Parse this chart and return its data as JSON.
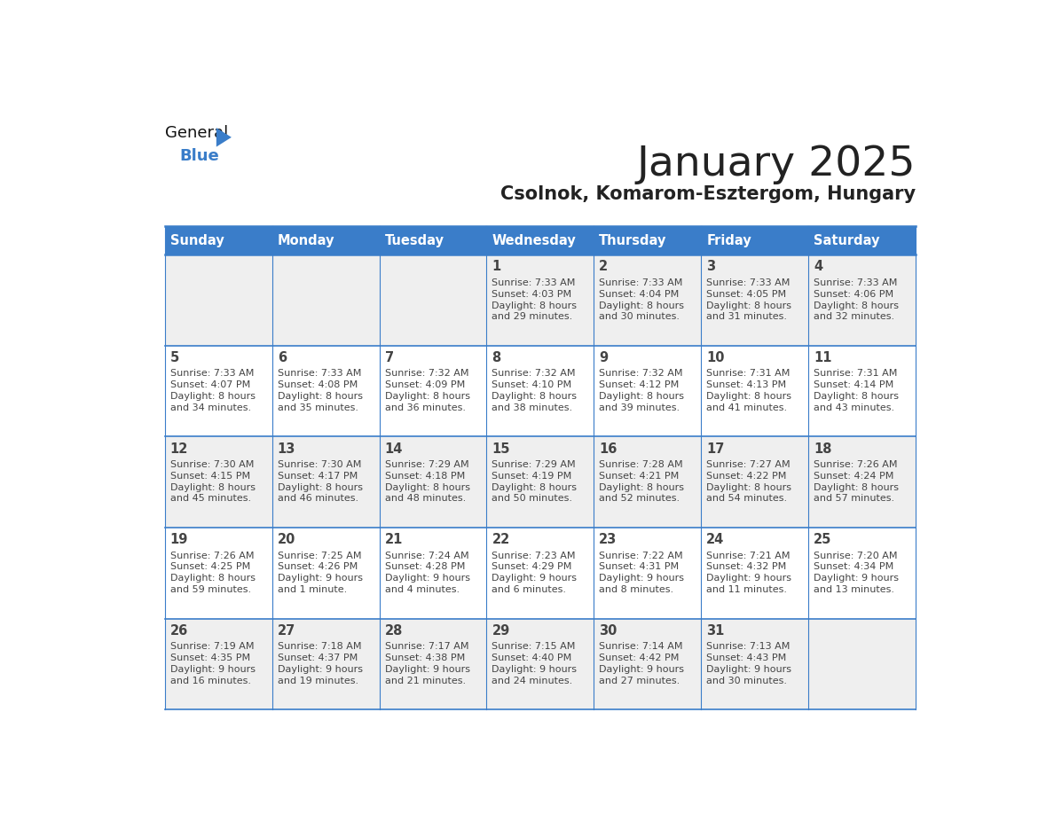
{
  "title": "January 2025",
  "subtitle": "Csolnok, Komarom-Esztergom, Hungary",
  "days_of_week": [
    "Sunday",
    "Monday",
    "Tuesday",
    "Wednesday",
    "Thursday",
    "Friday",
    "Saturday"
  ],
  "header_bg": "#3A7DC9",
  "header_text": "#FFFFFF",
  "row_bg_odd": "#EFEFEF",
  "row_bg_even": "#FFFFFF",
  "line_color": "#3A7DC9",
  "text_color": "#444444",
  "title_color": "#222222",
  "subtitle_color": "#222222",
  "logo_general_color": "#111111",
  "logo_blue_color": "#3A7DC9",
  "logo_triangle_color": "#3A7DC9",
  "calendar": [
    [
      {
        "day": null,
        "sunrise": null,
        "sunset": null,
        "daylight": null
      },
      {
        "day": null,
        "sunrise": null,
        "sunset": null,
        "daylight": null
      },
      {
        "day": null,
        "sunrise": null,
        "sunset": null,
        "daylight": null
      },
      {
        "day": 1,
        "sunrise": "7:33 AM",
        "sunset": "4:03 PM",
        "daylight": "8 hours\nand 29 minutes."
      },
      {
        "day": 2,
        "sunrise": "7:33 AM",
        "sunset": "4:04 PM",
        "daylight": "8 hours\nand 30 minutes."
      },
      {
        "day": 3,
        "sunrise": "7:33 AM",
        "sunset": "4:05 PM",
        "daylight": "8 hours\nand 31 minutes."
      },
      {
        "day": 4,
        "sunrise": "7:33 AM",
        "sunset": "4:06 PM",
        "daylight": "8 hours\nand 32 minutes."
      }
    ],
    [
      {
        "day": 5,
        "sunrise": "7:33 AM",
        "sunset": "4:07 PM",
        "daylight": "8 hours\nand 34 minutes."
      },
      {
        "day": 6,
        "sunrise": "7:33 AM",
        "sunset": "4:08 PM",
        "daylight": "8 hours\nand 35 minutes."
      },
      {
        "day": 7,
        "sunrise": "7:32 AM",
        "sunset": "4:09 PM",
        "daylight": "8 hours\nand 36 minutes."
      },
      {
        "day": 8,
        "sunrise": "7:32 AM",
        "sunset": "4:10 PM",
        "daylight": "8 hours\nand 38 minutes."
      },
      {
        "day": 9,
        "sunrise": "7:32 AM",
        "sunset": "4:12 PM",
        "daylight": "8 hours\nand 39 minutes."
      },
      {
        "day": 10,
        "sunrise": "7:31 AM",
        "sunset": "4:13 PM",
        "daylight": "8 hours\nand 41 minutes."
      },
      {
        "day": 11,
        "sunrise": "7:31 AM",
        "sunset": "4:14 PM",
        "daylight": "8 hours\nand 43 minutes."
      }
    ],
    [
      {
        "day": 12,
        "sunrise": "7:30 AM",
        "sunset": "4:15 PM",
        "daylight": "8 hours\nand 45 minutes."
      },
      {
        "day": 13,
        "sunrise": "7:30 AM",
        "sunset": "4:17 PM",
        "daylight": "8 hours\nand 46 minutes."
      },
      {
        "day": 14,
        "sunrise": "7:29 AM",
        "sunset": "4:18 PM",
        "daylight": "8 hours\nand 48 minutes."
      },
      {
        "day": 15,
        "sunrise": "7:29 AM",
        "sunset": "4:19 PM",
        "daylight": "8 hours\nand 50 minutes."
      },
      {
        "day": 16,
        "sunrise": "7:28 AM",
        "sunset": "4:21 PM",
        "daylight": "8 hours\nand 52 minutes."
      },
      {
        "day": 17,
        "sunrise": "7:27 AM",
        "sunset": "4:22 PM",
        "daylight": "8 hours\nand 54 minutes."
      },
      {
        "day": 18,
        "sunrise": "7:26 AM",
        "sunset": "4:24 PM",
        "daylight": "8 hours\nand 57 minutes."
      }
    ],
    [
      {
        "day": 19,
        "sunrise": "7:26 AM",
        "sunset": "4:25 PM",
        "daylight": "8 hours\nand 59 minutes."
      },
      {
        "day": 20,
        "sunrise": "7:25 AM",
        "sunset": "4:26 PM",
        "daylight": "9 hours\nand 1 minute."
      },
      {
        "day": 21,
        "sunrise": "7:24 AM",
        "sunset": "4:28 PM",
        "daylight": "9 hours\nand 4 minutes."
      },
      {
        "day": 22,
        "sunrise": "7:23 AM",
        "sunset": "4:29 PM",
        "daylight": "9 hours\nand 6 minutes."
      },
      {
        "day": 23,
        "sunrise": "7:22 AM",
        "sunset": "4:31 PM",
        "daylight": "9 hours\nand 8 minutes."
      },
      {
        "day": 24,
        "sunrise": "7:21 AM",
        "sunset": "4:32 PM",
        "daylight": "9 hours\nand 11 minutes."
      },
      {
        "day": 25,
        "sunrise": "7:20 AM",
        "sunset": "4:34 PM",
        "daylight": "9 hours\nand 13 minutes."
      }
    ],
    [
      {
        "day": 26,
        "sunrise": "7:19 AM",
        "sunset": "4:35 PM",
        "daylight": "9 hours\nand 16 minutes."
      },
      {
        "day": 27,
        "sunrise": "7:18 AM",
        "sunset": "4:37 PM",
        "daylight": "9 hours\nand 19 minutes."
      },
      {
        "day": 28,
        "sunrise": "7:17 AM",
        "sunset": "4:38 PM",
        "daylight": "9 hours\nand 21 minutes."
      },
      {
        "day": 29,
        "sunrise": "7:15 AM",
        "sunset": "4:40 PM",
        "daylight": "9 hours\nand 24 minutes."
      },
      {
        "day": 30,
        "sunrise": "7:14 AM",
        "sunset": "4:42 PM",
        "daylight": "9 hours\nand 27 minutes."
      },
      {
        "day": 31,
        "sunrise": "7:13 AM",
        "sunset": "4:43 PM",
        "daylight": "9 hours\nand 30 minutes."
      },
      {
        "day": null,
        "sunrise": null,
        "sunset": null,
        "daylight": null
      }
    ]
  ]
}
